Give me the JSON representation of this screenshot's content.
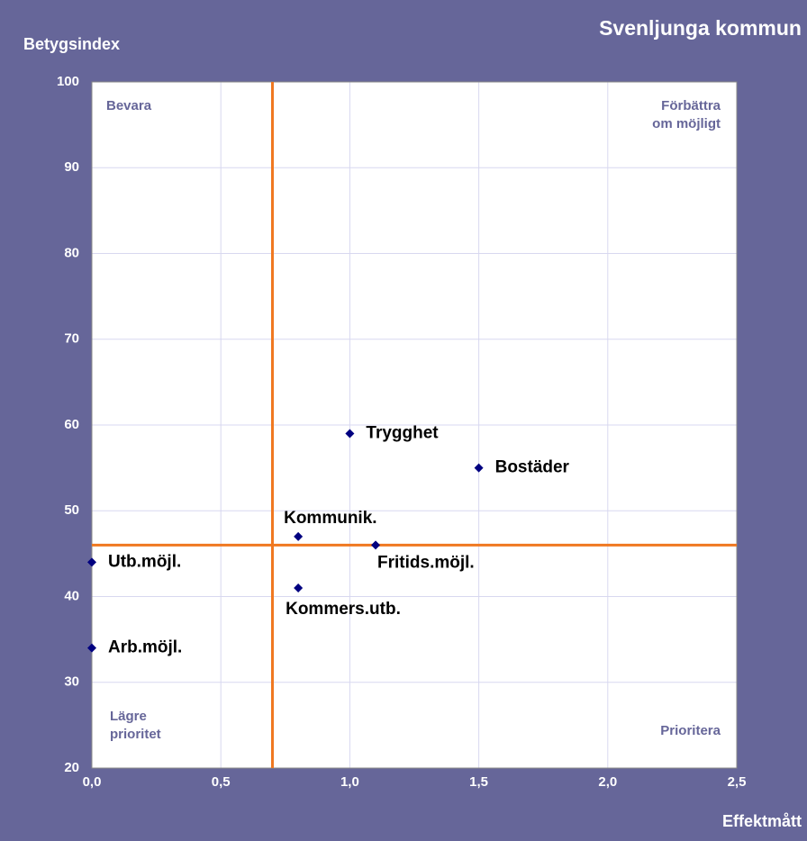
{
  "chart_data": {
    "type": "scatter",
    "title": "Svenljunga kommun",
    "y_label": "Betygsindex",
    "x_label": "Effektmått",
    "xlim": [
      0,
      2.5
    ],
    "ylim": [
      20,
      100
    ],
    "xticks": [
      {
        "value": 0,
        "label": "0,0"
      },
      {
        "value": 0.5,
        "label": "0,5"
      },
      {
        "value": 1,
        "label": "1,0"
      },
      {
        "value": 1.5,
        "label": "1,5"
      },
      {
        "value": 2,
        "label": "2,0"
      },
      {
        "value": 2.5,
        "label": "2,5"
      }
    ],
    "yticks": [
      20,
      30,
      40,
      50,
      60,
      70,
      80,
      90,
      100
    ],
    "grid": true,
    "color": "#000080",
    "reference_color": "#f07820",
    "vline": 0.7,
    "hline": 46,
    "points": [
      {
        "label": "Trygghet",
        "x": 1.0,
        "y": 59
      },
      {
        "label": "Bostäder",
        "x": 1.5,
        "y": 55
      },
      {
        "label": "Kommunik.",
        "x": 0.8,
        "y": 47
      },
      {
        "label": "Fritids.möjl.",
        "x": 1.1,
        "y": 46
      },
      {
        "label": "Utb.möjl.",
        "x": 0,
        "y": 44
      },
      {
        "label": "Kommers.utb.",
        "x": 0.8,
        "y": 41
      },
      {
        "label": "Arb.möjl.",
        "x": 0,
        "y": 34
      }
    ],
    "quadrant_labels": {
      "top_left": [
        "Bevara"
      ],
      "top_right": [
        "Förbättra",
        "om möjligt"
      ],
      "bottom_left": [
        "Lägre",
        "prioritet"
      ],
      "bottom_right": [
        "Prioritera"
      ]
    }
  }
}
